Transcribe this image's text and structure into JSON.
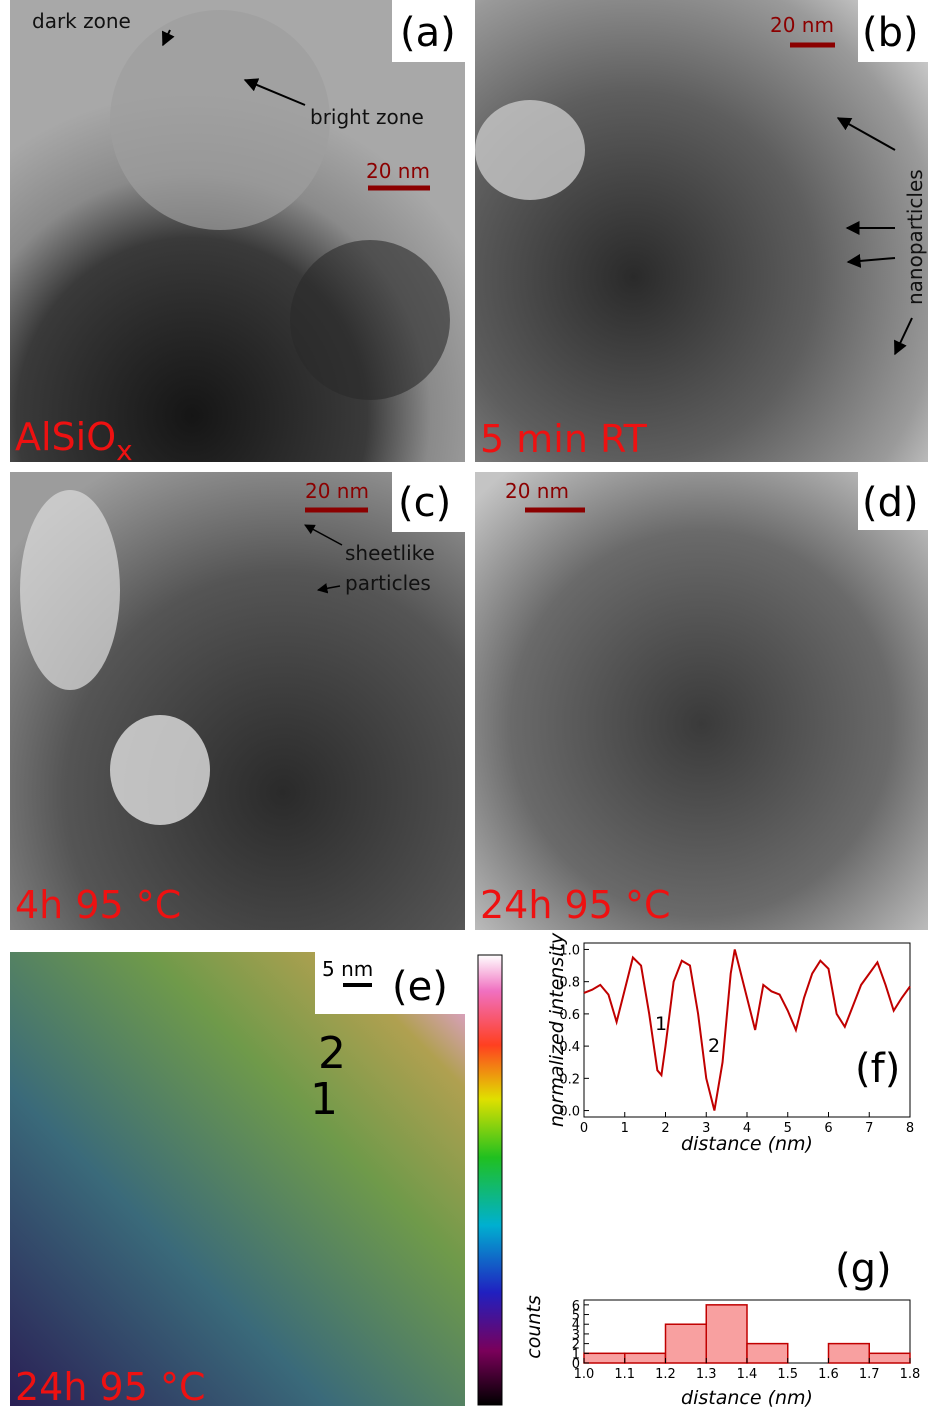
{
  "panels": [
    {
      "letter": "(a)",
      "annotations": [
        "dark zone",
        "bright zone"
      ],
      "scale_bar": "20 nm",
      "condition": "AlSiO",
      "condition_sub": "x"
    },
    {
      "letter": "(b)",
      "annotations": [
        "nanoparticles"
      ],
      "scale_bar": "20 nm",
      "condition": "5 min RT"
    },
    {
      "letter": "(c)",
      "annotations": [
        "sheetlike",
        "particles"
      ],
      "scale_bar": "20 nm",
      "condition": "4h 95 °C"
    },
    {
      "letter": "(d)",
      "scale_bar": "20 nm",
      "condition": "24h 95 °C"
    },
    {
      "letter": "(e)",
      "annotations": [
        "2",
        "1"
      ],
      "scale_bar_value": "5",
      "scale_bar_unit": "nm",
      "condition": "24h 95 °C"
    }
  ],
  "chart_data": [
    {
      "type": "line",
      "panel": "(f)",
      "x_label": "distance (nm)",
      "y_label": "normalized intensity",
      "color": "#c00000",
      "annotations": [
        "1",
        "2"
      ],
      "x": [
        0,
        0.2,
        0.4,
        0.6,
        0.8,
        1.0,
        1.2,
        1.4,
        1.6,
        1.8,
        1.9,
        2.0,
        2.2,
        2.4,
        2.6,
        2.8,
        3.0,
        3.2,
        3.4,
        3.6,
        3.7,
        3.8,
        4.0,
        4.2,
        4.4,
        4.6,
        4.8,
        5.0,
        5.2,
        5.4,
        5.6,
        5.8,
        6.0,
        6.2,
        6.4,
        6.6,
        6.8,
        7.0,
        7.2,
        7.4,
        7.6,
        7.8,
        8.0
      ],
      "values": [
        0.73,
        0.75,
        0.78,
        0.72,
        0.55,
        0.75,
        0.95,
        0.9,
        0.6,
        0.25,
        0.22,
        0.4,
        0.8,
        0.93,
        0.9,
        0.6,
        0.2,
        0.0,
        0.3,
        0.85,
        1.0,
        0.9,
        0.7,
        0.5,
        0.78,
        0.74,
        0.72,
        0.62,
        0.5,
        0.7,
        0.85,
        0.93,
        0.88,
        0.6,
        0.52,
        0.65,
        0.78,
        0.85,
        0.92,
        0.78,
        0.62,
        0.7,
        0.77
      ],
      "xlim": [
        0,
        8
      ],
      "xticks": [
        0,
        1,
        2,
        3,
        4,
        5,
        6,
        7,
        8
      ],
      "ylim": [
        -0.04,
        1.04
      ],
      "yticks": [
        {
          "value": 0,
          "label": "0.0"
        },
        0.2,
        0.4,
        0.6,
        0.8,
        {
          "value": 1,
          "label": "1.0"
        }
      ]
    },
    {
      "type": "histogram",
      "panel": "(g)",
      "x_label": "distance (nm)",
      "y_label": "counts",
      "color": "#f8a0a0",
      "edge_color": "#c00000",
      "bins": [
        1.0,
        1.1,
        1.2,
        1.3,
        1.4,
        1.5,
        1.6,
        1.7,
        1.8
      ],
      "values": [
        1,
        1,
        4,
        6,
        2,
        0,
        2,
        1
      ],
      "xlim": [
        1.0,
        1.8
      ],
      "xticks": [
        {
          "value": 1,
          "label": "1.0"
        },
        1.1,
        1.2,
        1.3,
        1.4,
        1.5,
        1.6,
        1.7,
        1.8
      ],
      "ylim": [
        0,
        6.5
      ],
      "yticks": [
        0,
        1,
        2,
        3,
        4,
        5,
        6
      ]
    }
  ]
}
